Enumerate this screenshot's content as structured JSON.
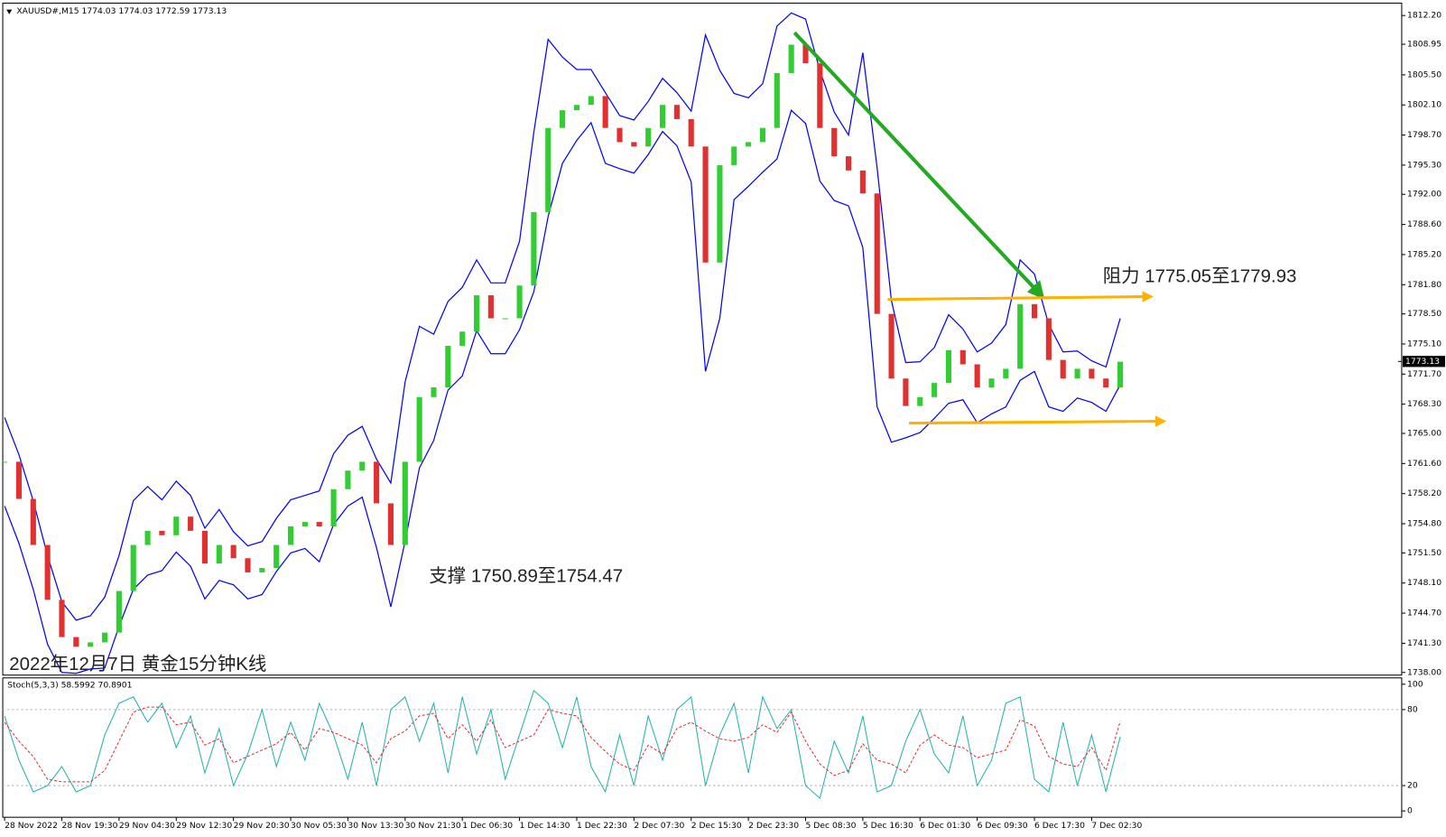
{
  "chart_data": [
    {
      "type": "candlestick",
      "title": "XAUUSD#,M15 1774.03 1774.03 1772.59 1773.13",
      "categories": [
        "28 Nov 2022",
        null,
        null,
        null,
        "28 Nov 19:30",
        null,
        null,
        null,
        "29 Nov 04:30",
        null,
        null,
        null,
        "29 Nov 12:30",
        null,
        null,
        null,
        "29 Nov 20:30",
        null,
        null,
        null,
        "30 Nov 05:30",
        null,
        null,
        null,
        "30 Nov 13:30",
        null,
        null,
        null,
        "30 Nov 21:30",
        null,
        null,
        null,
        "1 Dec 06:30",
        null,
        null,
        null,
        "1 Dec 14:30",
        null,
        null,
        null,
        "1 Dec 22:30",
        null,
        null,
        null,
        "2 Dec 07:30",
        null,
        null,
        null,
        "2 Dec 15:30",
        null,
        null,
        null,
        "2 Dec 23:30",
        null,
        null,
        null,
        "5 Dec 08:30",
        null,
        null,
        null,
        "5 Dec 16:30",
        null,
        null,
        null,
        "6 Dec 01:30",
        null,
        null,
        null,
        "6 Dec 09:30",
        null,
        null,
        null,
        "6 Dec 17:30",
        null,
        null,
        null,
        "7 Dec 02:30",
        null,
        null
      ],
      "close": [
        1761.8,
        1757.6,
        1752.4,
        1746.2,
        1742.0,
        1740.9,
        1741.4,
        1742.5,
        1747.2,
        1752.4,
        1754.0,
        1753.5,
        1755.6,
        1754.0,
        1750.3,
        1752.4,
        1750.9,
        1749.3,
        1749.8,
        1752.4,
        1754.5,
        1755.0,
        1754.5,
        1758.7,
        1760.8,
        1761.8,
        1757.1,
        1752.4,
        1761.8,
        1769.1,
        1770.2,
        1774.9,
        1776.5,
        1780.6,
        1778.0,
        1778.0,
        1781.7,
        1790.0,
        1799.5,
        1801.5,
        1802.1,
        1803.1,
        1799.5,
        1797.9,
        1797.4,
        1799.5,
        1802.1,
        1800.5,
        1797.4,
        1784.3,
        1795.3,
        1797.4,
        1797.9,
        1799.5,
        1805.7,
        1808.9,
        1806.8,
        1799.5,
        1796.3,
        1794.7,
        1792.1,
        1778.5,
        1771.2,
        1768.1,
        1769.1,
        1770.7,
        1774.4,
        1772.8,
        1770.2,
        1771.2,
        1772.3,
        1779.6,
        1778.0,
        1773.3,
        1771.2,
        1772.3,
        1771.2,
        1770.2,
        1773.1
      ],
      "band_upper": [
        1766.8,
        1762.6,
        1757.4,
        1751.2,
        1746.0,
        1743.9,
        1744.4,
        1746.5,
        1751.2,
        1757.4,
        1759.0,
        1757.5,
        1759.6,
        1758.0,
        1754.3,
        1756.4,
        1753.9,
        1752.3,
        1752.8,
        1755.4,
        1757.5,
        1758.0,
        1758.5,
        1762.7,
        1764.8,
        1765.8,
        1762.1,
        1759.4,
        1770.8,
        1777.1,
        1776.2,
        1779.9,
        1781.5,
        1784.6,
        1782.0,
        1782.0,
        1786.7,
        1799.0,
        1809.5,
        1807.5,
        1806.1,
        1806.1,
        1803.5,
        1800.9,
        1800.4,
        1802.5,
        1805.1,
        1803.5,
        1801.4,
        1810.0,
        1806.0,
        1803.4,
        1802.9,
        1804.5,
        1811.0,
        1812.5,
        1811.8,
        1806.0,
        1801.3,
        1798.7,
        1808.0,
        1795.0,
        1780.0,
        1773.0,
        1773.1,
        1774.7,
        1778.4,
        1776.8,
        1774.2,
        1775.2,
        1777.3,
        1784.6,
        1783.0,
        1777.3,
        1774.2,
        1774.3,
        1773.2,
        1772.5,
        1778.0
      ],
      "band_lower": [
        1756.8,
        1752.6,
        1747.4,
        1741.2,
        1738.0,
        1737.9,
        1738.4,
        1738.5,
        1743.2,
        1747.4,
        1749.0,
        1749.5,
        1751.6,
        1750.0,
        1746.3,
        1748.4,
        1747.9,
        1746.3,
        1746.8,
        1749.4,
        1751.5,
        1752.0,
        1750.5,
        1754.7,
        1756.8,
        1757.8,
        1752.1,
        1745.4,
        1752.8,
        1761.1,
        1764.2,
        1769.9,
        1771.5,
        1776.6,
        1774.0,
        1774.0,
        1776.7,
        1781.0,
        1789.5,
        1795.5,
        1798.1,
        1800.1,
        1795.5,
        1794.9,
        1794.4,
        1796.5,
        1799.1,
        1797.5,
        1793.4,
        1772.0,
        1778.0,
        1791.4,
        1792.9,
        1794.5,
        1796.0,
        1801.5,
        1800.0,
        1793.5,
        1791.3,
        1790.7,
        1786.0,
        1768.0,
        1764.0,
        1764.5,
        1765.1,
        1766.7,
        1768.4,
        1768.8,
        1766.2,
        1767.2,
        1768.0,
        1771.0,
        1772.0,
        1768.0,
        1767.5,
        1769.0,
        1768.5,
        1767.5,
        1770.5
      ],
      "up_color": "#32cd32",
      "down_color": "#e03030",
      "band_color": "#0000ff",
      "ylim": [
        1737.7,
        1813.6
      ],
      "yticks": [
        {
          "value": 1812.2,
          "label": "1812.20"
        },
        1808.95,
        {
          "value": 1805.5,
          "label": "1805.50"
        },
        {
          "value": 1802.1,
          "label": "1802.10"
        },
        {
          "value": 1798.7,
          "label": "1798.70"
        },
        {
          "value": 1795.3,
          "label": "1795.30"
        },
        {
          "value": 1792,
          "label": "1792.00"
        },
        {
          "value": 1788.6,
          "label": "1788.60"
        },
        {
          "value": 1785.2,
          "label": "1785.20"
        },
        {
          "value": 1781.8,
          "label": "1781.80"
        },
        {
          "value": 1778.5,
          "label": "1778.50"
        },
        {
          "value": 1775.1,
          "label": "1775.10"
        },
        {
          "value": 1771.7,
          "label": "1771.70"
        },
        {
          "value": 1768.3,
          "label": "1768.30"
        },
        {
          "value": 1765,
          "label": "1765.00"
        },
        {
          "value": 1761.6,
          "label": "1761.60"
        },
        {
          "value": 1758.2,
          "label": "1758.20"
        },
        {
          "value": 1754.8,
          "label": "1754.80"
        },
        {
          "value": 1751.5,
          "label": "1751.50"
        },
        {
          "value": 1748.1,
          "label": "1748.10"
        },
        {
          "value": 1744.7,
          "label": "1744.70"
        },
        {
          "value": 1741.3,
          "label": "1741.30"
        },
        {
          "value": 1738,
          "label": "1738.00"
        }
      ],
      "price_marker": 1773.13,
      "annotations": [
        "阻力 1775.05至1779.93",
        "支撑 1750.89至1754.47",
        "2022年12月7日 黄金15分钟K线"
      ]
    },
    {
      "type": "line",
      "title": "Stoch(5,3,3) 58.5992 70.8901",
      "series": [
        {
          "color": "#20b2aa",
          "values": [
            75,
            40,
            15,
            20,
            35,
            15,
            20,
            60,
            85,
            90,
            70,
            85,
            50,
            75,
            30,
            65,
            20,
            45,
            80,
            35,
            70,
            40,
            85,
            60,
            25,
            70,
            20,
            80,
            90,
            55,
            85,
            30,
            90,
            45,
            80,
            25,
            60,
            95,
            85,
            50,
            90,
            35,
            15,
            60,
            20,
            75,
            40,
            80,
            90,
            20,
            60,
            85,
            30,
            90,
            65,
            80,
            20,
            10,
            55,
            30,
            75,
            15,
            20,
            55,
            80,
            45,
            30,
            75,
            20,
            40,
            85,
            90,
            25,
            15,
            70,
            20,
            60,
            15,
            58.6
          ]
        },
        {
          "color": "#e03030",
          "dashed": true,
          "values": [
            70,
            55,
            43,
            25,
            23,
            23,
            23,
            32,
            55,
            78,
            82,
            82,
            68,
            70,
            52,
            57,
            38,
            43,
            48,
            53,
            62,
            48,
            65,
            62,
            57,
            52,
            38,
            57,
            63,
            75,
            77,
            57,
            68,
            55,
            72,
            50,
            55,
            60,
            80,
            77,
            75,
            58,
            47,
            37,
            32,
            52,
            45,
            65,
            70,
            63,
            57,
            55,
            58,
            68,
            62,
            78,
            55,
            37,
            28,
            32,
            53,
            40,
            37,
            30,
            52,
            60,
            52,
            50,
            42,
            45,
            48,
            72,
            67,
            43,
            37,
            35,
            50,
            32,
            70.9
          ]
        }
      ],
      "ylim": [
        -5,
        105
      ],
      "yticks": [
        0,
        20,
        80,
        100
      ],
      "levels": [
        20,
        80
      ]
    }
  ]
}
